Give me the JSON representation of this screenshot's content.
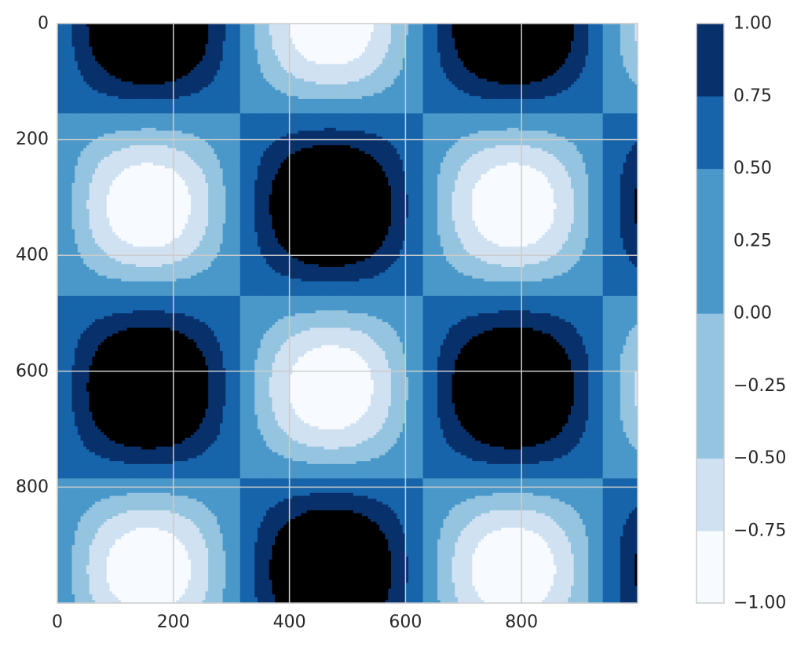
{
  "chart_data": {
    "type": "heatmap",
    "subtype": "filled-contour",
    "function": "sin(x/100) * cos(y/100)",
    "title": "",
    "xlabel": "",
    "ylabel": "",
    "xlim": [
      0,
      1000
    ],
    "ylim": [
      1000,
      0
    ],
    "y_axis_inverted": true,
    "xticks": [
      0,
      200,
      400,
      600,
      800
    ],
    "yticks": [
      0,
      200,
      400,
      600,
      800
    ],
    "xtick_labels": [
      "0",
      "200",
      "400",
      "600",
      "800"
    ],
    "ytick_labels": [
      "0",
      "200",
      "400",
      "600",
      "800"
    ],
    "grid": true,
    "colormap": "Blues",
    "levels": [
      -1.0,
      -0.75,
      -0.5,
      -0.25,
      0.0,
      0.25,
      0.5,
      0.75,
      1.0
    ],
    "level_colors": [
      "#f7fbff",
      "#d0e1f2",
      "#94c4df",
      "#4a98c9",
      "#1764ab",
      "#08306b"
    ],
    "band_colors": [
      "#f7fbff",
      "#d0e1f2",
      "#94c4df",
      "#94c4df",
      "#4a98c9",
      "#4a98c9",
      "#1764ab",
      "#08306b"
    ],
    "colorbar": {
      "placement": "right",
      "ticks": [
        1.0,
        0.75,
        0.5,
        0.25,
        0.0,
        -0.25,
        -0.5,
        -0.75,
        -1.0
      ],
      "tick_labels": [
        "1.00",
        "0.75",
        "0.50",
        "0.25",
        "0.00",
        "−0.25",
        "−0.50",
        "−0.75",
        "−1.00"
      ]
    }
  }
}
